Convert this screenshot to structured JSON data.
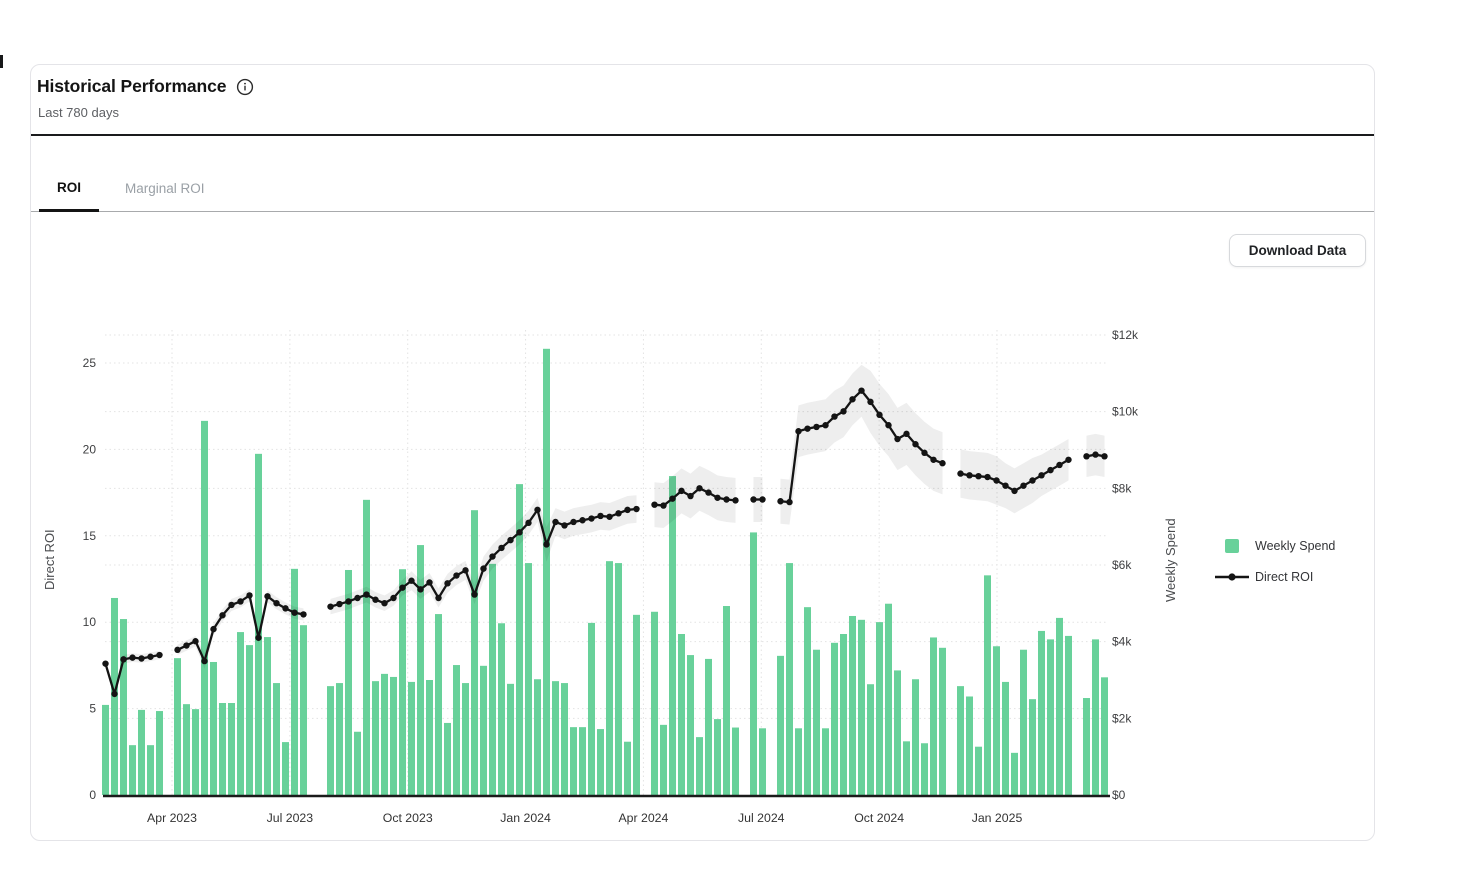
{
  "card": {
    "title": "Historical Performance",
    "subtitle": "Last 780 days",
    "tabs": [
      {
        "label": "ROI",
        "active": true
      },
      {
        "label": "Marginal ROI",
        "active": false
      }
    ],
    "download_button": "Download Data",
    "info_icon": "info-circle"
  },
  "colors": {
    "bar": "#68d19a",
    "line": "#141414",
    "band": "rgba(0,0,0,0.065)",
    "grid": "#e3e3e3",
    "axis_text": "#3e3f41",
    "x_label_text": "#333333",
    "baseline": "#1a1a1a"
  },
  "chart_data": {
    "type": "bar+line",
    "x_unit": "week",
    "weeks": 112,
    "grid": true,
    "legend_position": "right",
    "x_axis": {
      "labels": [
        "Apr 2023",
        "Jul 2023",
        "Oct 2023",
        "Jan 2024",
        "Apr 2024",
        "Jul 2024",
        "Oct 2024",
        "Jan 2025"
      ]
    },
    "left_axis": {
      "label": "Direct ROI",
      "ticks": [
        0,
        5,
        10,
        15,
        20,
        25
      ],
      "range": [
        0,
        27
      ]
    },
    "right_axis": {
      "label": "Weekly Spend",
      "ticks_k": [
        0,
        2,
        4,
        6,
        8,
        10,
        12
      ],
      "tick_labels": [
        "$0",
        "$2k",
        "$4k",
        "$6k",
        "$8k",
        "$10k",
        "$12k"
      ],
      "range_k": [
        0,
        12
      ]
    },
    "series": [
      {
        "name": "Weekly Spend",
        "type": "bar",
        "axis": "right",
        "unit": "$k",
        "values": [
          2.35,
          5.14,
          4.59,
          1.3,
          2.22,
          1.3,
          2.19,
          null,
          3.57,
          2.37,
          2.24,
          9.76,
          3.47,
          2.4,
          2.4,
          4.25,
          3.91,
          8.9,
          4.12,
          2.92,
          1.38,
          5.9,
          4.43,
          null,
          null,
          2.84,
          2.92,
          5.87,
          1.65,
          7.7,
          2.97,
          3.16,
          3.08,
          5.89,
          2.95,
          6.52,
          3.0,
          4.72,
          1.88,
          3.39,
          2.92,
          7.43,
          3.37,
          6.03,
          4.48,
          2.9,
          8.11,
          6.05,
          3.02,
          11.64,
          2.97,
          2.92,
          1.77,
          1.77,
          4.49,
          1.72,
          6.1,
          6.05,
          1.39,
          4.7,
          null,
          4.78,
          1.83,
          8.32,
          4.2,
          3.65,
          1.51,
          3.55,
          1.98,
          4.93,
          1.76,
          null,
          6.85,
          1.74,
          null,
          3.63,
          6.05,
          1.74,
          4.9,
          3.79,
          1.74,
          3.97,
          4.2,
          4.67,
          4.57,
          2.89,
          4.51,
          4.99,
          3.25,
          1.4,
          3.02,
          1.35,
          4.11,
          3.84,
          null,
          2.84,
          2.57,
          1.26,
          5.73,
          3.88,
          2.95,
          1.1,
          3.79,
          2.5,
          4.28,
          4.06,
          4.62,
          4.15,
          null,
          2.53,
          4.06,
          3.07
        ]
      },
      {
        "name": "Direct ROI",
        "type": "line",
        "axis": "left",
        "values": [
          7.6,
          5.85,
          7.85,
          7.95,
          7.9,
          8.0,
          8.1,
          null,
          8.4,
          8.65,
          8.9,
          7.75,
          9.6,
          10.4,
          11.0,
          11.2,
          11.55,
          9.1,
          11.5,
          11.1,
          10.8,
          10.55,
          10.45,
          null,
          null,
          10.9,
          11.05,
          11.2,
          11.4,
          11.6,
          11.3,
          11.1,
          11.4,
          12.0,
          12.4,
          11.9,
          12.3,
          11.4,
          12.25,
          12.7,
          13.0,
          11.6,
          13.1,
          13.8,
          14.3,
          14.75,
          15.2,
          15.75,
          16.5,
          14.5,
          15.8,
          15.6,
          15.8,
          15.9,
          16.0,
          16.15,
          16.1,
          16.3,
          16.5,
          16.55,
          null,
          16.8,
          16.75,
          17.15,
          17.6,
          17.3,
          17.75,
          17.5,
          17.2,
          17.1,
          17.05,
          null,
          17.1,
          17.1,
          null,
          17.0,
          16.95,
          21.05,
          21.2,
          21.3,
          21.4,
          21.9,
          22.2,
          22.9,
          23.4,
          22.75,
          22.0,
          21.4,
          20.6,
          20.9,
          20.3,
          19.8,
          19.4,
          19.2,
          null,
          18.6,
          18.5,
          18.45,
          18.4,
          18.2,
          17.9,
          17.6,
          17.9,
          18.2,
          18.5,
          18.8,
          19.1,
          19.4,
          null,
          19.6,
          19.7,
          19.6
        ],
        "band_halfwidth": [
          0.25,
          0.25,
          0.25,
          0.25,
          0.25,
          0.25,
          0.25,
          null,
          0.3,
          0.3,
          0.3,
          0.45,
          0.35,
          0.35,
          0.35,
          0.35,
          0.35,
          0.35,
          0.35,
          0.35,
          0.35,
          0.35,
          0.35,
          null,
          null,
          0.45,
          0.45,
          0.45,
          0.45,
          0.45,
          0.45,
          0.45,
          0.45,
          0.45,
          0.55,
          0.55,
          0.55,
          0.55,
          0.55,
          0.55,
          0.55,
          0.55,
          0.7,
          0.7,
          0.7,
          0.7,
          0.7,
          0.7,
          0.7,
          1.0,
          0.8,
          0.8,
          0.8,
          0.8,
          0.8,
          0.8,
          0.8,
          0.8,
          0.8,
          0.8,
          null,
          1.3,
          1.3,
          1.3,
          1.3,
          1.3,
          1.3,
          1.3,
          1.3,
          1.3,
          1.3,
          null,
          1.3,
          1.3,
          null,
          1.3,
          1.3,
          1.5,
          1.5,
          1.5,
          1.5,
          1.5,
          1.5,
          1.5,
          1.5,
          1.8,
          1.8,
          1.8,
          1.8,
          1.8,
          1.8,
          1.8,
          1.8,
          1.8,
          null,
          1.4,
          1.4,
          1.4,
          1.4,
          1.4,
          1.3,
          1.3,
          1.3,
          1.3,
          1.2,
          1.2,
          1.2,
          1.2,
          null,
          1.2,
          1.2,
          1.2
        ]
      }
    ]
  }
}
